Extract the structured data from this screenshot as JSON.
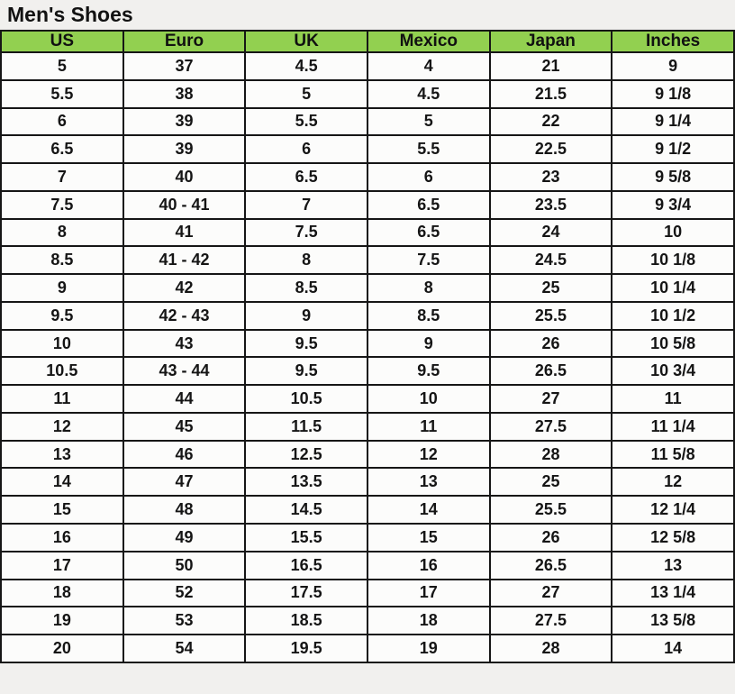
{
  "page": {
    "title": "Men's Shoes"
  },
  "colors": {
    "header_bg": "#92d050",
    "border": "#161616",
    "cell_bg": "#fcfcfb",
    "page_bg": "#f1f0ee",
    "text": "#161616"
  },
  "chart_data": {
    "type": "table",
    "title": "Men's Shoes",
    "columns": [
      "US",
      "Euro",
      "UK",
      "Mexico",
      "Japan",
      "Inches"
    ],
    "rows": [
      [
        "5",
        "37",
        "4.5",
        "4",
        "21",
        "9"
      ],
      [
        "5.5",
        "38",
        "5",
        "4.5",
        "21.5",
        "9 1/8"
      ],
      [
        "6",
        "39",
        "5.5",
        "5",
        "22",
        "9 1/4"
      ],
      [
        "6.5",
        "39",
        "6",
        "5.5",
        "22.5",
        "9 1/2"
      ],
      [
        "7",
        "40",
        "6.5",
        "6",
        "23",
        "9 5/8"
      ],
      [
        "7.5",
        "40 - 41",
        "7",
        "6.5",
        "23.5",
        "9 3/4"
      ],
      [
        "8",
        "41",
        "7.5",
        "6.5",
        "24",
        "10"
      ],
      [
        "8.5",
        "41 - 42",
        "8",
        "7.5",
        "24.5",
        "10 1/8"
      ],
      [
        "9",
        "42",
        "8.5",
        "8",
        "25",
        "10 1/4"
      ],
      [
        "9.5",
        "42 - 43",
        "9",
        "8.5",
        "25.5",
        "10 1/2"
      ],
      [
        "10",
        "43",
        "9.5",
        "9",
        "26",
        "10 5/8"
      ],
      [
        "10.5",
        "43 - 44",
        "9.5",
        "9.5",
        "26.5",
        "10 3/4"
      ],
      [
        "11",
        "44",
        "10.5",
        "10",
        "27",
        "11"
      ],
      [
        "12",
        "45",
        "11.5",
        "11",
        "27.5",
        "11 1/4"
      ],
      [
        "13",
        "46",
        "12.5",
        "12",
        "28",
        "11 5/8"
      ],
      [
        "14",
        "47",
        "13.5",
        "13",
        "25",
        "12"
      ],
      [
        "15",
        "48",
        "14.5",
        "14",
        "25.5",
        "12 1/4"
      ],
      [
        "16",
        "49",
        "15.5",
        "15",
        "26",
        "12 5/8"
      ],
      [
        "17",
        "50",
        "16.5",
        "16",
        "26.5",
        "13"
      ],
      [
        "18",
        "52",
        "17.5",
        "17",
        "27",
        "13 1/4"
      ],
      [
        "19",
        "53",
        "18.5",
        "18",
        "27.5",
        "13 5/8"
      ],
      [
        "20",
        "54",
        "19.5",
        "19",
        "28",
        "14"
      ]
    ]
  }
}
